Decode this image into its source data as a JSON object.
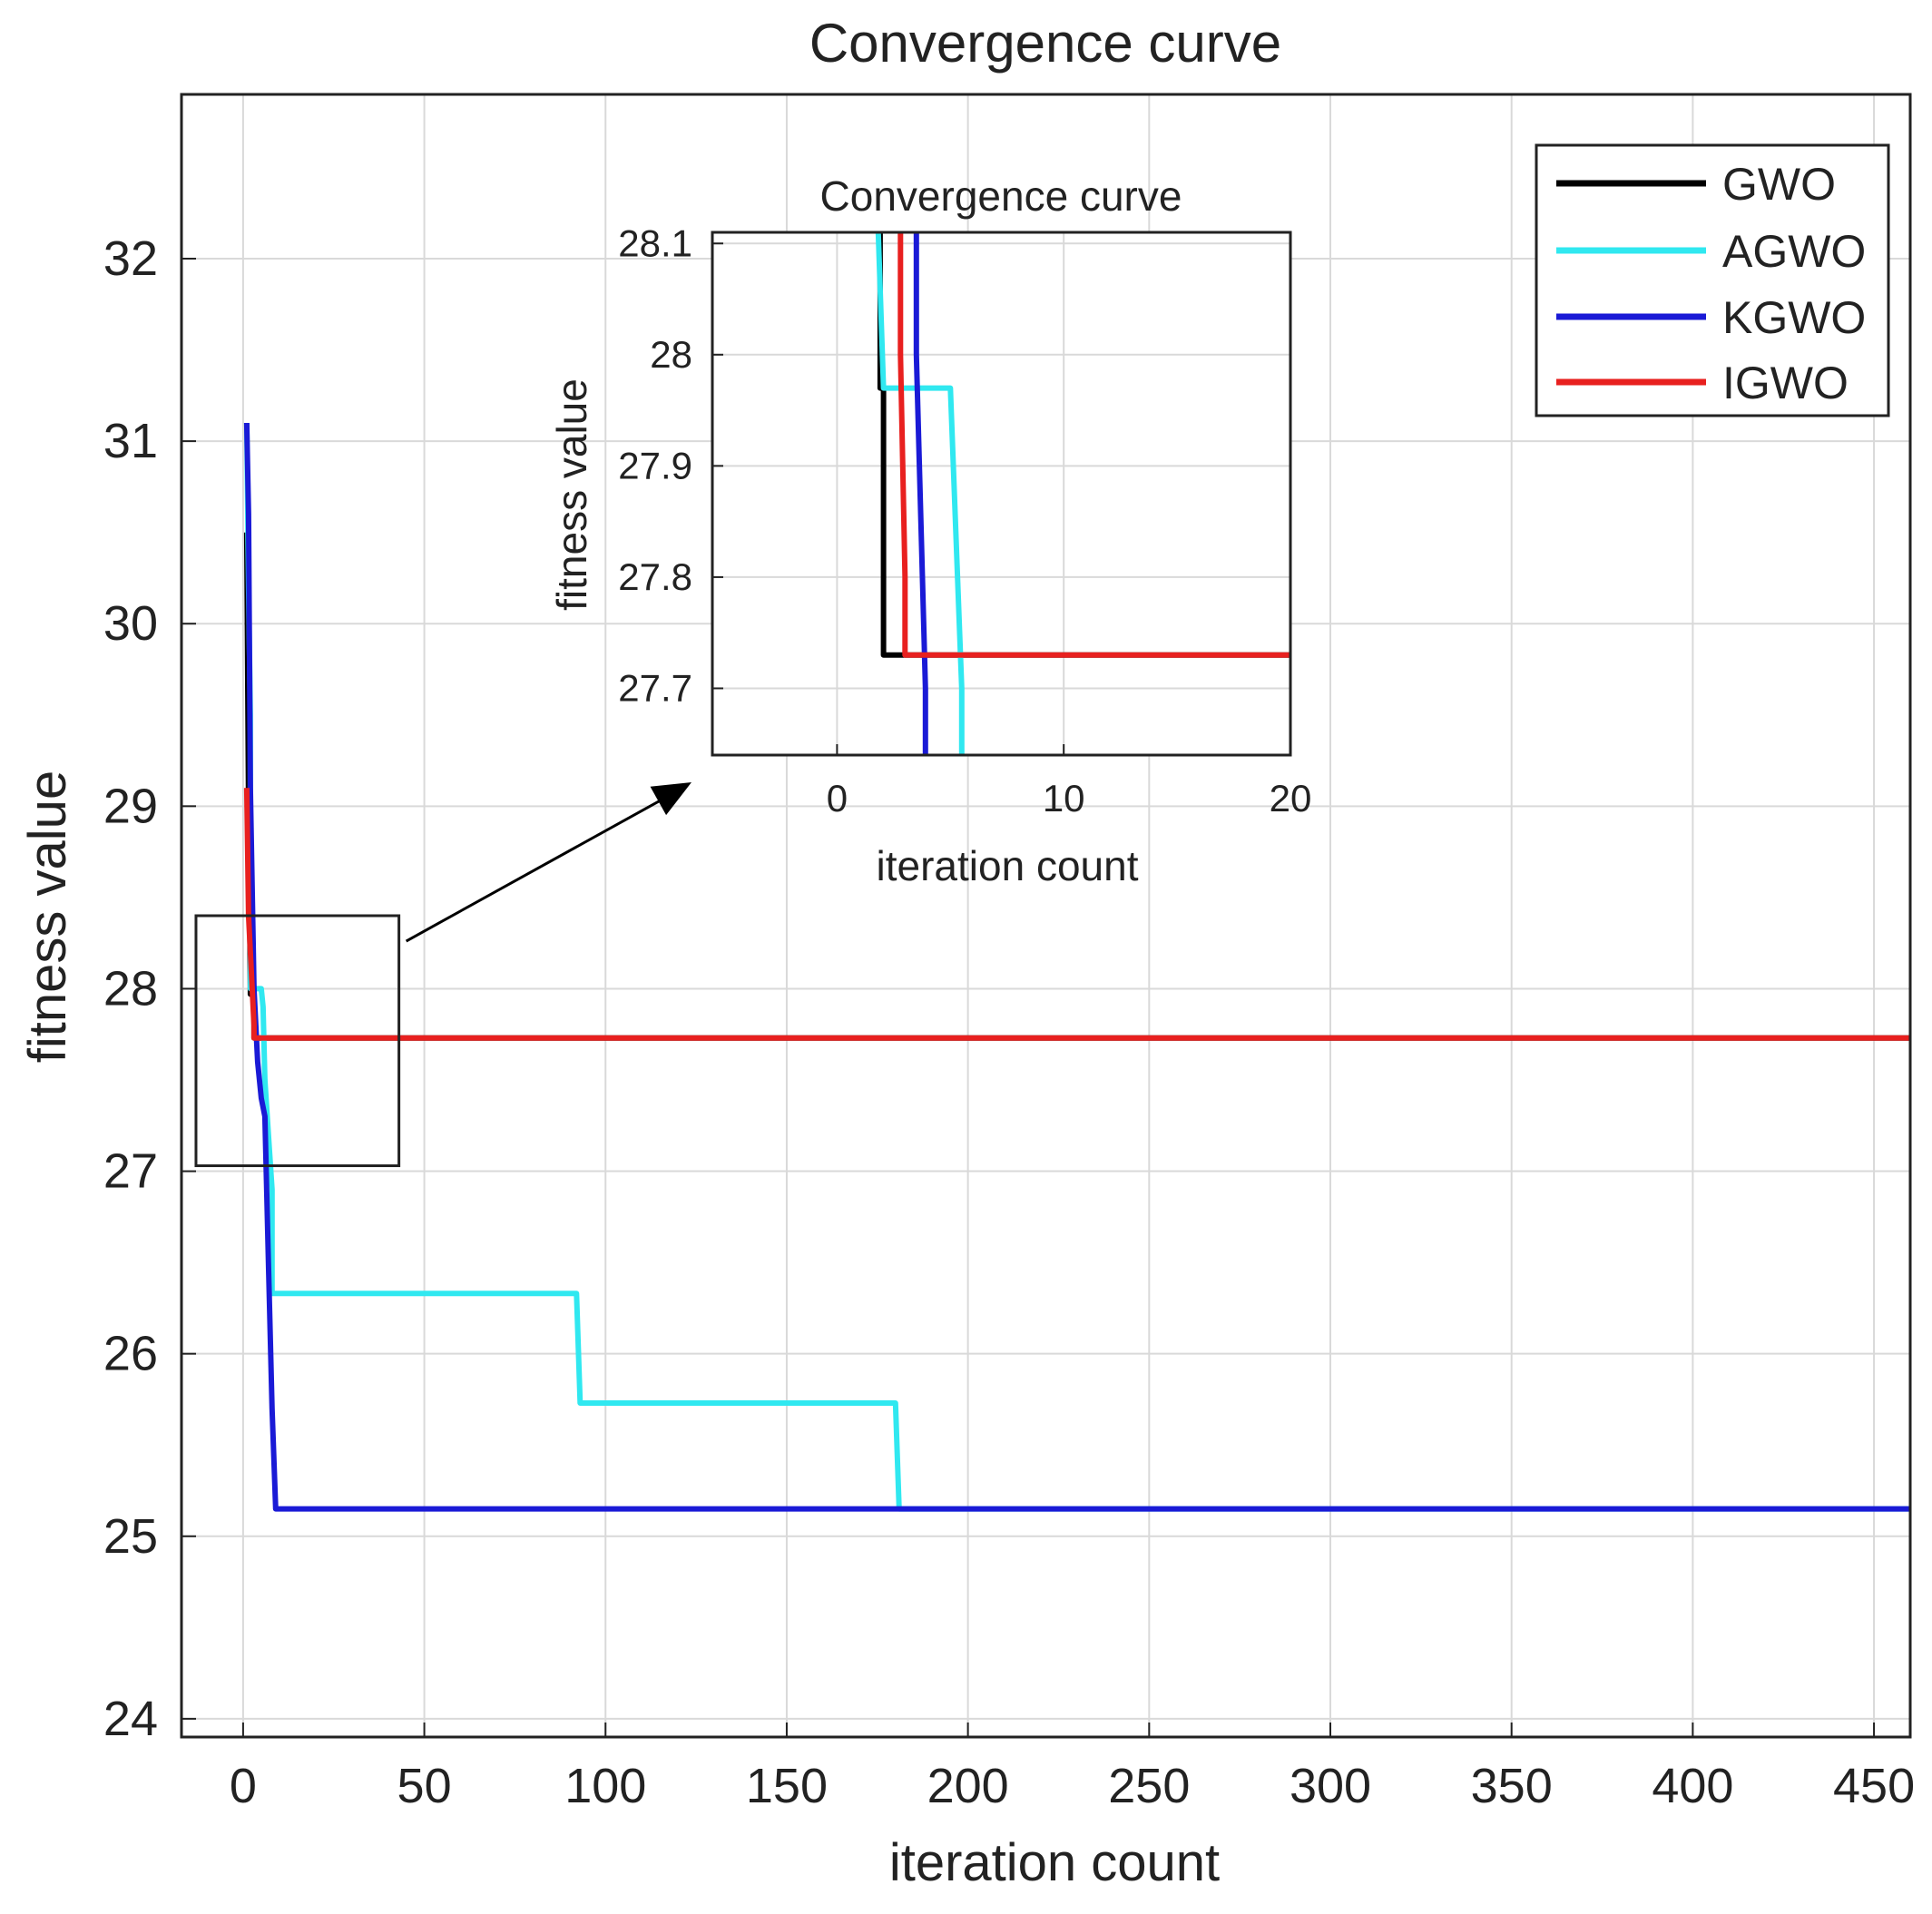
{
  "chart_data": [
    {
      "id": "main",
      "type": "line",
      "title": "Convergence curve",
      "xlabel": "iteration count",
      "ylabel": "fitness value",
      "xlim": [
        -17,
        460
      ],
      "ylim": [
        23.9,
        32.9
      ],
      "xticks": [
        0,
        50,
        100,
        150,
        200,
        250,
        300,
        350,
        400,
        450
      ],
      "yticks": [
        24,
        25,
        26,
        27,
        28,
        29,
        30,
        31,
        32
      ],
      "grid": true,
      "legend_position": "top-right",
      "series": [
        {
          "name": "GWO",
          "color": "#000000",
          "x": [
            1,
            1.5,
            2,
            2,
            3,
            3,
            460
          ],
          "y": [
            30.5,
            29.0,
            28.0,
            27.97,
            27.97,
            27.73,
            27.73
          ]
        },
        {
          "name": "AGWO",
          "color": "#30e8f0",
          "x": [
            1,
            1.5,
            2,
            2,
            5,
            5.5,
            6,
            7,
            8,
            8,
            92,
            93,
            180,
            181,
            460
          ],
          "y": [
            31.1,
            30.2,
            29.5,
            28.0,
            28.0,
            27.9,
            27.5,
            27.2,
            26.9,
            26.33,
            26.33,
            25.73,
            25.73,
            25.15,
            25.15
          ]
        },
        {
          "name": "KGWO",
          "color": "#1a1ad6",
          "x": [
            1,
            1.5,
            2,
            3,
            4,
            5,
            6,
            7,
            8,
            9,
            460
          ],
          "y": [
            31.1,
            30.6,
            29.1,
            28.0,
            27.6,
            27.4,
            27.3,
            26.5,
            25.7,
            25.15,
            25.15
          ]
        },
        {
          "name": "IGWO",
          "color": "#e8201f",
          "x": [
            1,
            1.5,
            2.5,
            3,
            3,
            460
          ],
          "y": [
            29.1,
            28.4,
            28.0,
            27.8,
            27.73,
            27.73
          ]
        }
      ],
      "zoom_box": {
        "x_range": [
          -13,
          43
        ],
        "y_range": [
          27.03,
          28.4
        ]
      }
    },
    {
      "id": "inset",
      "type": "line",
      "title": "Convergence curve",
      "xlabel": "iteration count",
      "ylabel": "fitness value",
      "xlim": [
        -5.5,
        20
      ],
      "ylim": [
        27.64,
        28.11
      ],
      "xticks": [
        0,
        10,
        20
      ],
      "yticks": [
        27.7,
        27.8,
        27.9,
        28,
        28.1
      ],
      "ytick_labels": [
        "27.7",
        "27.8",
        "27.9",
        "28",
        "28.1"
      ],
      "grid": true,
      "series": [
        {
          "name": "GWO",
          "color": "#000000",
          "x": [
            1.9,
            1.9,
            2.05,
            2.05,
            3,
            20
          ],
          "y": [
            28.12,
            27.97,
            27.97,
            27.73,
            27.73,
            27.73
          ]
        },
        {
          "name": "AGWO",
          "color": "#30e8f0",
          "x": [
            1.8,
            2.05,
            2.05,
            5,
            5.5,
            5.5
          ],
          "y": [
            28.12,
            27.97,
            27.97,
            27.97,
            27.7,
            27.63
          ]
        },
        {
          "name": "KGWO",
          "color": "#1a1ad6",
          "x": [
            3.5,
            3.5,
            3.9,
            3.9
          ],
          "y": [
            28.12,
            28.0,
            27.7,
            27.63
          ]
        },
        {
          "name": "IGWO",
          "color": "#e8201f",
          "x": [
            2.8,
            2.8,
            3.0,
            3.0,
            20
          ],
          "y": [
            28.12,
            28.0,
            27.8,
            27.73,
            27.73
          ]
        }
      ]
    }
  ]
}
